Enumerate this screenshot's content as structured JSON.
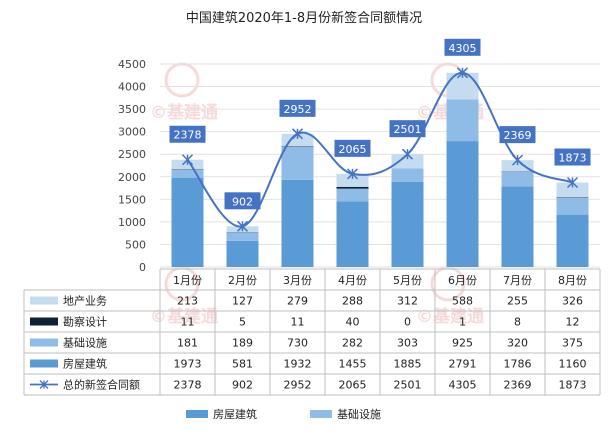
{
  "chart_data": {
    "type": "bar",
    "stacked": true,
    "title": "中国建筑2020年1-8月份新签合同额情况",
    "categories": [
      "1月份",
      "2月份",
      "3月份",
      "4月份",
      "5月份",
      "6月份",
      "7月份",
      "8月份"
    ],
    "ylim": [
      0,
      4500
    ],
    "yticks": [
      0,
      500,
      1000,
      1500,
      2000,
      2500,
      3000,
      3500,
      4000,
      4500
    ],
    "series": [
      {
        "name": "房屋建筑",
        "values": [
          1973,
          581,
          1932,
          1455,
          1885,
          2791,
          1786,
          1160
        ],
        "color": "#5b9bd5"
      },
      {
        "name": "基础设施",
        "values": [
          181,
          189,
          730,
          282,
          303,
          925,
          320,
          375
        ],
        "color": "#8fbce6"
      },
      {
        "name": "勘察设计",
        "values": [
          11,
          5,
          11,
          40,
          0,
          1,
          8,
          12
        ],
        "color": "#0d2137"
      },
      {
        "name": "地产业务",
        "values": [
          213,
          127,
          279,
          288,
          312,
          588,
          255,
          326
        ],
        "color": "#c5dcf0"
      }
    ],
    "line": {
      "name": "总的新签合同额",
      "values": [
        2378,
        902,
        2952,
        2065,
        2501,
        4305,
        2369,
        1873
      ],
      "color": "#4472c4"
    },
    "table_rows_order": [
      "地产业务",
      "勘察设计",
      "基础设施",
      "房屋建筑",
      "总的新签合同额"
    ],
    "legend": {
      "position": "bottom",
      "entries": [
        "房屋建筑",
        "基础设施"
      ]
    },
    "watermark": "©基建通"
  }
}
